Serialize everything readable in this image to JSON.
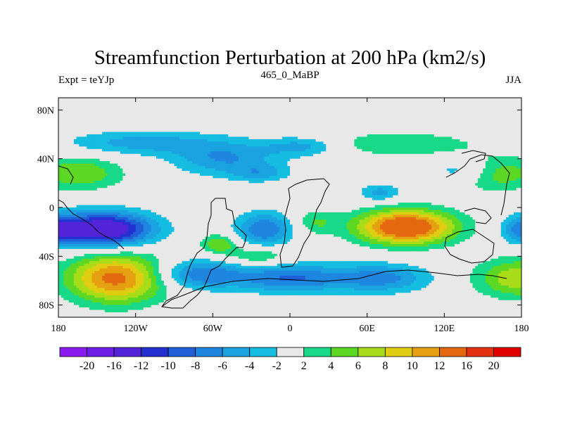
{
  "chart_data": {
    "type": "heatmap",
    "title": "Streamfunction Perturbation at 200 hPa (km2/s)",
    "left_string": "Expt = teYJp",
    "center_string": "465_0_MaBP",
    "right_string": "JJA",
    "x_ticks": [
      {
        "value": -180,
        "label": "180"
      },
      {
        "value": -120,
        "label": "120W"
      },
      {
        "value": -60,
        "label": "60W"
      },
      {
        "value": 0,
        "label": "0"
      },
      {
        "value": 60,
        "label": "60E"
      },
      {
        "value": 120,
        "label": "120E"
      },
      {
        "value": 180,
        "label": "180"
      }
    ],
    "y_ticks": [
      {
        "value": 80,
        "label": "80N"
      },
      {
        "value": 40,
        "label": "40N"
      },
      {
        "value": 0,
        "label": "0"
      },
      {
        "value": -40,
        "label": "40S"
      },
      {
        "value": -80,
        "label": "80S"
      }
    ],
    "xlim": [
      -180,
      180
    ],
    "ylim": [
      -90,
      90
    ],
    "contour_levels": [
      -20,
      -16,
      -12,
      -10,
      -8,
      -6,
      -4,
      -2,
      2,
      4,
      6,
      8,
      10,
      12,
      16,
      20
    ],
    "colorbar_labels": [
      "-20",
      "-16",
      "-12",
      "-10",
      "-8",
      "-6",
      "-4",
      "-2",
      "2",
      "4",
      "6",
      "8",
      "10",
      "12",
      "16",
      "20"
    ],
    "colorbar_colors": [
      "#8a1cf0",
      "#6f1ee6",
      "#5324d8",
      "#2430d0",
      "#1f5fd8",
      "#1f86e0",
      "#1ba2e0",
      "#15bde0",
      "#e8e8e8",
      "#18d988",
      "#5cd824",
      "#a8dc18",
      "#e0cc10",
      "#e4a010",
      "#e46810",
      "#e23010",
      "#e00000"
    ],
    "blobs": [
      {
        "lon": -115,
        "lat": 53,
        "rx": 60,
        "ry": 10,
        "v": -5
      },
      {
        "lon": -50,
        "lat": 40,
        "rx": 40,
        "ry": 14,
        "v": -6
      },
      {
        "lon": -22,
        "lat": 28,
        "rx": 22,
        "ry": 7,
        "v": -4
      },
      {
        "lon": 10,
        "lat": 50,
        "rx": 30,
        "ry": 8,
        "v": -5
      },
      {
        "lon": 85,
        "lat": 52,
        "rx": 60,
        "ry": 10,
        "v": 4
      },
      {
        "lon": 160,
        "lat": 28,
        "rx": 35,
        "ry": 14,
        "v": 6
      },
      {
        "lon": -165,
        "lat": 28,
        "rx": 35,
        "ry": 14,
        "v": 6
      },
      {
        "lon": 135,
        "lat": 30,
        "rx": 25,
        "ry": 10,
        "v": -5
      },
      {
        "lon": 70,
        "lat": 12,
        "rx": 16,
        "ry": 7,
        "v": -5
      },
      {
        "lon": -145,
        "lat": -18,
        "rx": 38,
        "ry": 14,
        "v": -16
      },
      {
        "lon": 180,
        "lat": -18,
        "rx": 15,
        "ry": 12,
        "v": -8
      },
      {
        "lon": -180,
        "lat": -18,
        "rx": 15,
        "ry": 12,
        "v": -8
      },
      {
        "lon": -20,
        "lat": -18,
        "rx": 22,
        "ry": 14,
        "v": -8
      },
      {
        "lon": -55,
        "lat": -30,
        "rx": 14,
        "ry": 8,
        "v": 6
      },
      {
        "lon": -25,
        "lat": -40,
        "rx": 24,
        "ry": 8,
        "v": 5
      },
      {
        "lon": 90,
        "lat": -16,
        "rx": 38,
        "ry": 14,
        "v": 16
      },
      {
        "lon": 20,
        "lat": -12,
        "rx": 16,
        "ry": 10,
        "v": 4
      },
      {
        "lon": -135,
        "lat": -58,
        "rx": 38,
        "ry": 20,
        "v": 13
      },
      {
        "lon": -70,
        "lat": -55,
        "rx": 35,
        "ry": 12,
        "v": -8
      },
      {
        "lon": 0,
        "lat": -58,
        "rx": 40,
        "ry": 12,
        "v": -8
      },
      {
        "lon": 70,
        "lat": -58,
        "rx": 38,
        "ry": 12,
        "v": -7
      },
      {
        "lon": 180,
        "lat": -58,
        "rx": 35,
        "ry": 16,
        "v": 8
      }
    ]
  }
}
